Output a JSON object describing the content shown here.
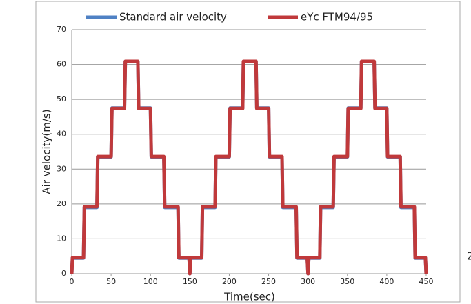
{
  "chart_data": {
    "type": "line",
    "x": [
      0,
      1,
      15,
      16,
      32,
      33,
      50,
      51,
      67,
      68,
      84,
      85,
      100,
      101,
      117,
      118,
      135,
      136,
      149,
      150,
      151,
      165,
      166,
      182,
      183,
      200,
      201,
      217,
      218,
      234,
      235,
      250,
      251,
      267,
      268,
      285,
      286,
      299,
      300,
      301,
      315,
      316,
      332,
      333,
      350,
      351,
      367,
      368,
      384,
      385,
      400,
      401,
      417,
      418,
      435,
      436,
      449,
      450
    ],
    "series": [
      {
        "name": "Standard air velocity",
        "color": "#4f81c4",
        "values": [
          0,
          4.5,
          4.5,
          19,
          19,
          33.5,
          33.5,
          47.5,
          47.5,
          60.8,
          60.8,
          47.5,
          47.5,
          33.5,
          33.5,
          19,
          19,
          4.5,
          4.5,
          0,
          4.5,
          4.5,
          19,
          19,
          33.5,
          33.5,
          47.5,
          47.5,
          60.8,
          60.8,
          47.5,
          47.5,
          33.5,
          33.5,
          19,
          19,
          4.5,
          4.5,
          0,
          4.5,
          4.5,
          19,
          19,
          33.5,
          33.5,
          47.5,
          47.5,
          60.8,
          60.8,
          47.5,
          47.5,
          33.5,
          33.5,
          19,
          19,
          4.5,
          4.5,
          0
        ]
      },
      {
        "name": "eYc FTM94/95",
        "color": "#c0393b",
        "values": [
          0,
          4.6,
          4.6,
          19.2,
          19.2,
          33.6,
          33.6,
          47.4,
          47.4,
          60.9,
          60.9,
          47.4,
          47.4,
          33.6,
          33.6,
          19.2,
          19.2,
          4.6,
          4.6,
          0,
          4.6,
          4.6,
          19.2,
          19.2,
          33.6,
          33.6,
          47.4,
          47.4,
          60.9,
          60.9,
          47.4,
          47.4,
          33.6,
          33.6,
          19.2,
          19.2,
          4.6,
          4.6,
          0,
          4.6,
          4.6,
          19.2,
          19.2,
          33.6,
          33.6,
          47.4,
          47.4,
          60.9,
          60.9,
          47.4,
          47.4,
          33.6,
          33.6,
          19.2,
          19.2,
          4.6,
          4.6,
          0
        ]
      }
    ],
    "x_label": "Time(sec)",
    "y_label": "Air velocity(m/s)",
    "xlim": [
      0,
      450
    ],
    "xticks": [
      0,
      50,
      100,
      150,
      200,
      250,
      300,
      350,
      400,
      450
    ],
    "ylim": [
      0,
      70
    ],
    "yticks": [
      0,
      10,
      20,
      30,
      40,
      50,
      60,
      70
    ],
    "grid": true,
    "legend": "top",
    "annotation": "2"
  }
}
